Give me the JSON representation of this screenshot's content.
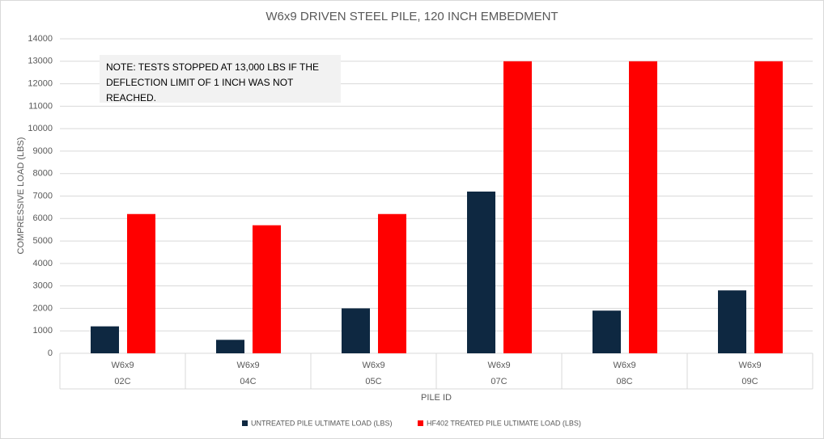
{
  "chart_data": {
    "type": "bar",
    "title": "W6x9 DRIVEN STEEL PILE, 120 INCH EMBEDMENT",
    "x_label": "PILE ID",
    "y_label": "COMPRESSIVE LOAD (LBS)",
    "annotation": "NOTE: TESTS STOPPED AT 13,000 LBS IF THE DEFLECTION LIMIT OF 1 INCH WAS NOT REACHED.",
    "categories": [
      [
        "W6x9",
        "02C"
      ],
      [
        "W6x9",
        "04C"
      ],
      [
        "W6x9",
        "05C"
      ],
      [
        "W6x9",
        "07C"
      ],
      [
        "W6x9",
        "08C"
      ],
      [
        "W6x9",
        "09C"
      ]
    ],
    "series": [
      {
        "name": "UNTREATED PILE ULTIMATE LOAD (LBS)",
        "color": "#0e2841",
        "values": [
          1200,
          600,
          2000,
          7200,
          1900,
          2800
        ]
      },
      {
        "name": "HF402 TREATED PILE ULTIMATE LOAD (LBS)",
        "color": "#ff0000",
        "values": [
          6200,
          5700,
          6200,
          13000,
          13000,
          13000
        ]
      }
    ],
    "ylim": [
      0,
      14000
    ],
    "yticks": [
      0,
      1000,
      2000,
      3000,
      4000,
      5000,
      6000,
      7000,
      8000,
      9000,
      10000,
      11000,
      12000,
      13000,
      14000
    ],
    "grid": true,
    "legend": "bottom"
  }
}
